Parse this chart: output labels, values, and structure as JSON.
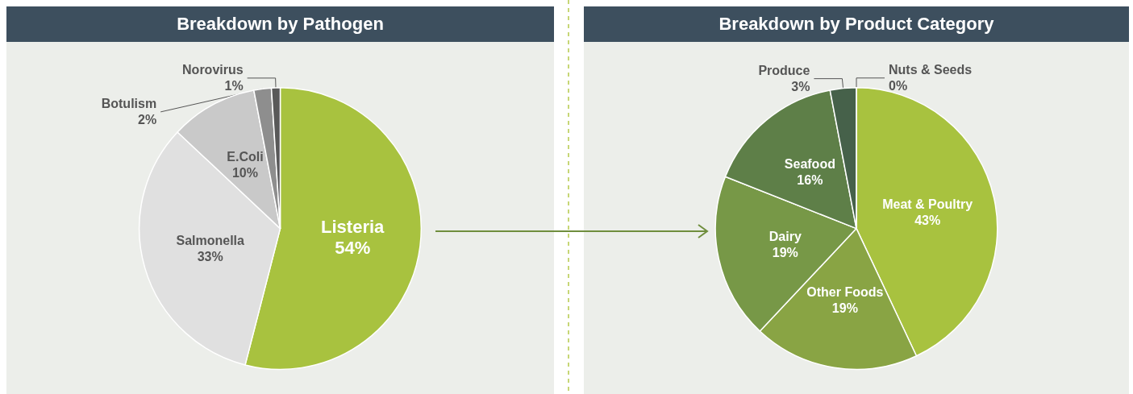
{
  "chart_data": [
    {
      "type": "pie",
      "title": "Breakdown by Pathogen",
      "categories": [
        "Listeria",
        "Salmonella",
        "E.Coli",
        "Botulism",
        "Norovirus"
      ],
      "values": [
        54,
        33,
        10,
        2,
        1
      ],
      "value_labels": [
        "54%",
        "33%",
        "10%",
        "2%",
        "1%"
      ],
      "colors": [
        "#a8c23f",
        "#e0e0e0",
        "#c9c9c9",
        "#8e8e8e",
        "#595959"
      ]
    },
    {
      "type": "pie",
      "title": "Breakdown by Product Category",
      "categories": [
        "Meat & Poultry",
        "Other Foods",
        "Dairy",
        "Seafood",
        "Produce",
        "Nuts & Seeds"
      ],
      "values": [
        43,
        19,
        19,
        16,
        3,
        0
      ],
      "value_labels": [
        "43%",
        "19%",
        "19%",
        "16%",
        "3%",
        "0%"
      ],
      "colors": [
        "#a8c23f",
        "#89a444",
        "#779847",
        "#5e7f48",
        "#46614a",
        "#2f4858"
      ]
    }
  ]
}
